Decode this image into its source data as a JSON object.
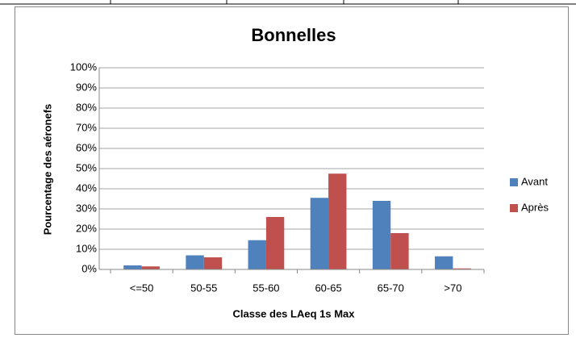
{
  "chart_data": {
    "type": "bar",
    "title": "Bonnelles",
    "x_label": "Classe des LAeq 1s Max",
    "y_label": "Pourcentage des aéronefs",
    "categories": [
      "<=50",
      "50-55",
      "55-60",
      "60-65",
      "65-70",
      ">70"
    ],
    "series": [
      {
        "name": "Avant",
        "color": "#4f81bd",
        "values": [
          2,
          7,
          14.5,
          35.5,
          34,
          6.5
        ]
      },
      {
        "name": "Après",
        "color": "#c0504d",
        "values": [
          1.5,
          6,
          26,
          47.5,
          18,
          0.5
        ]
      }
    ],
    "ylim": [
      0,
      100
    ],
    "yticks": [
      {
        "value": 0,
        "label": "0%"
      },
      {
        "value": 10,
        "label": "10%"
      },
      {
        "value": 20,
        "label": "20%"
      },
      {
        "value": 30,
        "label": "30%"
      },
      {
        "value": 40,
        "label": "40%"
      },
      {
        "value": 50,
        "label": "50%"
      },
      {
        "value": 60,
        "label": "60%"
      },
      {
        "value": 70,
        "label": "70%"
      },
      {
        "value": 80,
        "label": "80%"
      },
      {
        "value": 90,
        "label": "90%"
      },
      {
        "value": 100,
        "label": "100%"
      }
    ],
    "grid": true,
    "legend": "right"
  }
}
